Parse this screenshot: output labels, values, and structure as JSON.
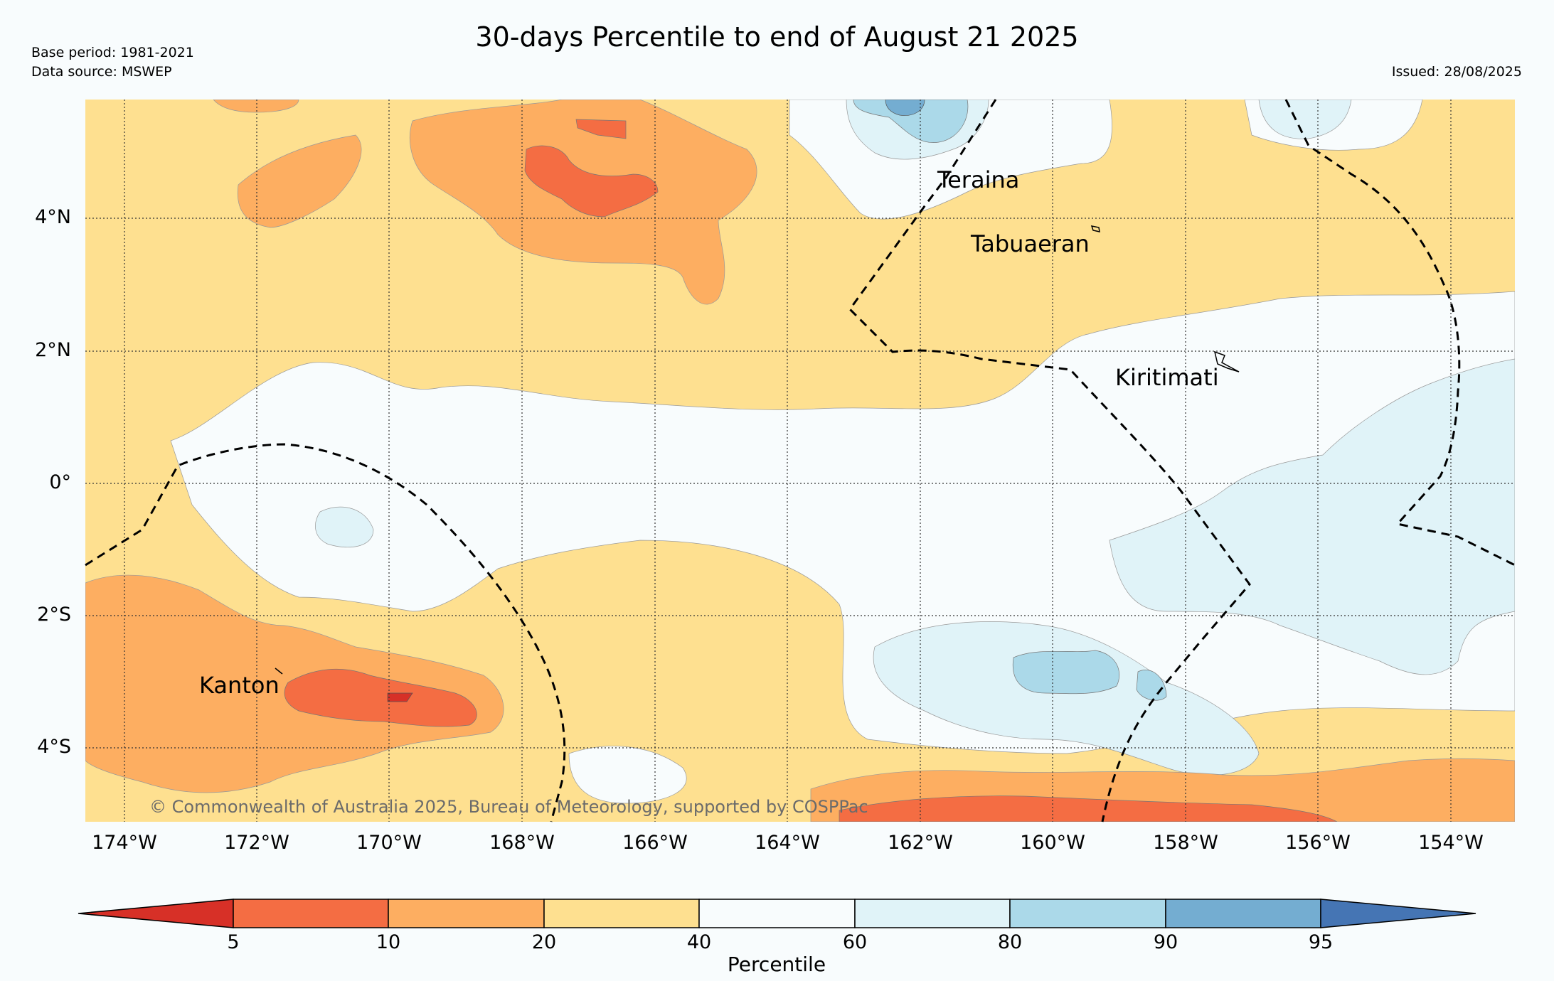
{
  "header": {
    "title": "30-days Percentile to end of August 21 2025",
    "base_period": "Base period: 1981-2021",
    "data_source": "Data source: MSWEP",
    "issued": "Issued: 28/08/2025"
  },
  "map": {
    "lat_labels": [
      "4°N",
      "2°N",
      "0°",
      "2°S",
      "4°S"
    ],
    "lon_labels": [
      "174°W",
      "172°W",
      "170°W",
      "168°W",
      "166°W",
      "164°W",
      "162°W",
      "160°W",
      "158°W",
      "156°W",
      "154°W"
    ],
    "places": {
      "teraina": "Teraina",
      "tabuaeran": "Tabuaeran",
      "kiritimati": "Kiritimati",
      "kanton": "Kanton"
    },
    "copyright": "© Commonwealth of Australia 2025, Bureau of Meteorology, supported by COSPPac"
  },
  "colorbar": {
    "title": "Percentile",
    "ticks": [
      "5",
      "10",
      "20",
      "40",
      "60",
      "80",
      "90",
      "95"
    ],
    "colors": {
      "below5": "#d73027",
      "p5_10": "#f46d43",
      "p10_20": "#fdae61",
      "p20_40": "#fee090",
      "p40_60": "#f8fcfd",
      "p60_80": "#e0f3f8",
      "p80_90": "#abd9e9",
      "p90_95": "#74add1",
      "above95": "#4575b4"
    }
  }
}
